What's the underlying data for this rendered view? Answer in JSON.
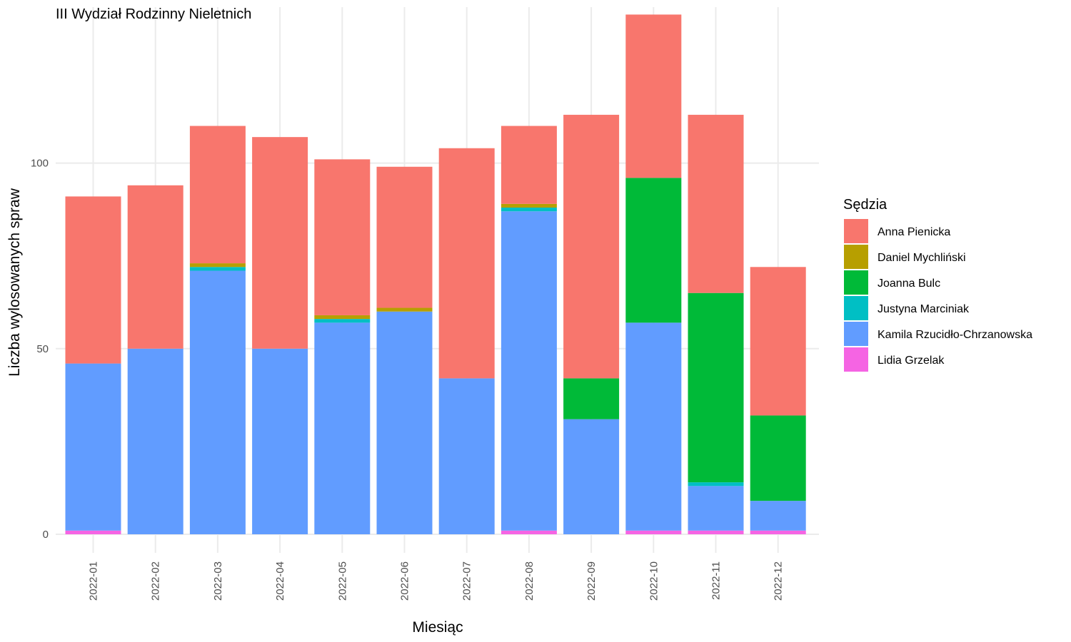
{
  "chart_data": {
    "type": "bar",
    "stacked": true,
    "title": "III Wydział Rodzinny Nieletnich",
    "xlabel": "Miesiąc",
    "ylabel": "Liczba wylosowanych spraw",
    "ylim": [
      -5,
      142
    ],
    "yticks": [
      0,
      50,
      100
    ],
    "grid": true,
    "legend": {
      "title": "Sędzia",
      "position": "right"
    },
    "categories": [
      "2022-01",
      "2022-02",
      "2022-03",
      "2022-04",
      "2022-05",
      "2022-06",
      "2022-07",
      "2022-08",
      "2022-09",
      "2022-10",
      "2022-11",
      "2022-12"
    ],
    "series": [
      {
        "name": "Lidia Grzelak",
        "color": "#F564E3",
        "values": [
          1,
          0,
          0,
          0,
          0,
          0,
          0,
          1,
          0,
          1,
          1,
          1
        ]
      },
      {
        "name": "Kamila Rzucidło-Chrzanowska",
        "color": "#619CFF",
        "values": [
          45,
          50,
          71,
          50,
          57,
          60,
          42,
          86,
          31,
          56,
          12,
          8
        ]
      },
      {
        "name": "Justyna Marciniak",
        "color": "#00BFC4",
        "values": [
          0,
          0,
          1,
          0,
          1,
          0,
          0,
          1,
          0,
          0,
          1,
          0
        ]
      },
      {
        "name": "Joanna Bulc",
        "color": "#00BA38",
        "values": [
          0,
          0,
          0,
          0,
          0,
          0,
          0,
          0,
          11,
          39,
          51,
          23
        ]
      },
      {
        "name": "Daniel Mychliński",
        "color": "#B79F00",
        "values": [
          0,
          0,
          1,
          0,
          1,
          1,
          0,
          1,
          0,
          0,
          0,
          0
        ]
      },
      {
        "name": "Anna Pienicka",
        "color": "#F8766D",
        "values": [
          45,
          44,
          37,
          57,
          42,
          38,
          62,
          21,
          71,
          44,
          48,
          40
        ]
      }
    ],
    "legend_order": [
      "Anna Pienicka",
      "Daniel Mychliński",
      "Joanna Bulc",
      "Justyna Marciniak",
      "Kamila Rzucidło-Chrzanowska",
      "Lidia Grzelak"
    ]
  }
}
